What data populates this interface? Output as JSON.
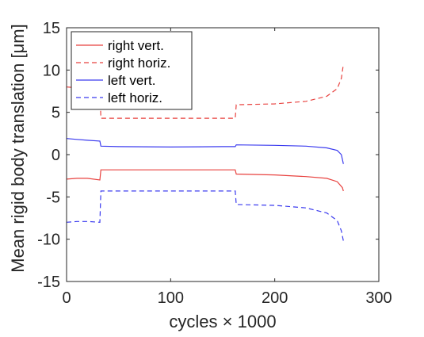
{
  "chart_data": {
    "type": "line",
    "title": "",
    "xlabel": "cycles × 1000",
    "ylabel": "Mean rigid body translation [μm]",
    "xlim": [
      0,
      300
    ],
    "ylim": [
      -15,
      15
    ],
    "xticks": [
      0,
      100,
      200,
      300
    ],
    "yticks": [
      -15,
      -10,
      -5,
      0,
      5,
      10,
      15
    ],
    "grid": false,
    "legend_position": "top-left",
    "series": [
      {
        "name": "right vert.",
        "color": "#e8423f",
        "dash": "solid",
        "x": [
          0,
          10,
          20,
          32,
          33,
          50,
          100,
          150,
          162,
          163,
          200,
          230,
          250,
          260,
          265,
          266
        ],
        "y": [
          -2.9,
          -2.8,
          -2.8,
          -3.0,
          -1.8,
          -1.8,
          -1.8,
          -1.8,
          -1.8,
          -2.3,
          -2.4,
          -2.6,
          -2.8,
          -3.2,
          -3.9,
          -4.3
        ]
      },
      {
        "name": "right horiz.",
        "color": "#e8423f",
        "dash": "dashed",
        "x": [
          0,
          10,
          20,
          32,
          33,
          50,
          100,
          150,
          162,
          163,
          200,
          230,
          250,
          260,
          264,
          266
        ],
        "y": [
          8.0,
          7.9,
          7.8,
          7.8,
          4.3,
          4.3,
          4.3,
          4.3,
          4.3,
          5.9,
          6.0,
          6.3,
          6.9,
          7.8,
          9.0,
          10.7
        ]
      },
      {
        "name": "left vert.",
        "color": "#3b3bef",
        "dash": "solid",
        "x": [
          0,
          10,
          20,
          32,
          33,
          50,
          100,
          150,
          162,
          163,
          200,
          230,
          250,
          260,
          264,
          266
        ],
        "y": [
          1.9,
          1.8,
          1.7,
          1.6,
          1.0,
          0.95,
          0.9,
          0.95,
          0.95,
          1.15,
          1.1,
          1.0,
          0.8,
          0.5,
          0.0,
          -1.1
        ]
      },
      {
        "name": "left horiz.",
        "color": "#3b3bef",
        "dash": "dashed",
        "x": [
          0,
          10,
          20,
          32,
          33,
          50,
          100,
          150,
          162,
          163,
          200,
          230,
          250,
          260,
          264,
          266
        ],
        "y": [
          -8.0,
          -7.9,
          -7.9,
          -8.0,
          -4.3,
          -4.3,
          -4.3,
          -4.3,
          -4.3,
          -5.9,
          -6.0,
          -6.3,
          -6.9,
          -7.8,
          -9.0,
          -10.2
        ]
      }
    ]
  }
}
